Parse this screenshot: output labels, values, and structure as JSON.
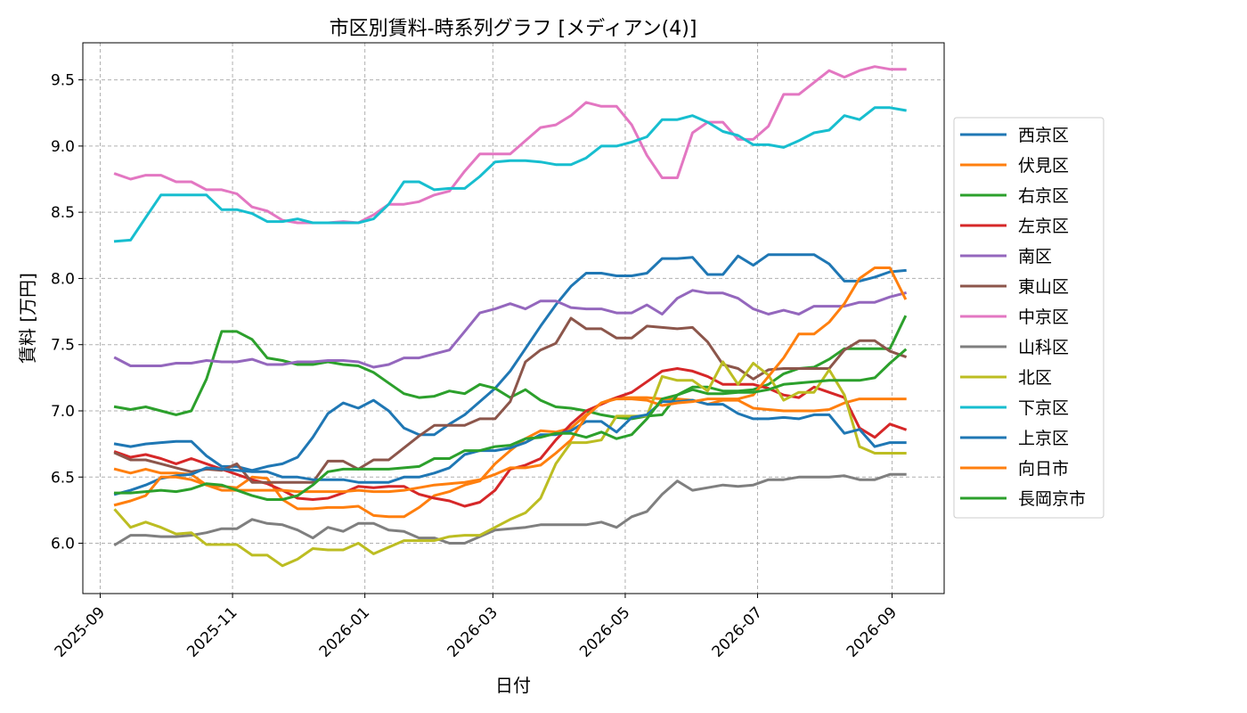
{
  "chart_data": {
    "type": "line",
    "title": "市区別賃料-時系列グラフ [メディアン(4)]",
    "xlabel": "日付",
    "ylabel": "賃料 [万円]",
    "xlim": [
      "2025-08-24",
      "2026-09-25"
    ],
    "ylim": [
      5.62,
      9.78
    ],
    "x_ticks": [
      "2025-09",
      "2025-11",
      "2026-01",
      "2026-03",
      "2026-05",
      "2026-07",
      "2026-09"
    ],
    "y_ticks": [
      "6.0",
      "6.5",
      "7.0",
      "7.5",
      "8.0",
      "8.5",
      "9.0",
      "9.5"
    ],
    "grid": true,
    "legend_position": "right",
    "x": [
      "2025-09-08",
      "2025-09-15",
      "2025-09-22",
      "2025-09-29",
      "2025-10-06",
      "2025-10-13",
      "2025-10-20",
      "2025-10-27",
      "2025-11-03",
      "2025-11-10",
      "2025-11-17",
      "2025-11-24",
      "2025-12-01",
      "2025-12-08",
      "2025-12-15",
      "2025-12-22",
      "2025-12-29",
      "2026-01-05",
      "2026-01-12",
      "2026-01-19",
      "2026-01-26",
      "2026-02-02",
      "2026-02-09",
      "2026-02-16",
      "2026-02-23",
      "2026-03-02",
      "2026-03-09",
      "2026-03-16",
      "2026-03-23",
      "2026-03-30",
      "2026-04-06",
      "2026-04-13",
      "2026-04-20",
      "2026-04-27",
      "2026-05-04",
      "2026-05-11",
      "2026-05-18",
      "2026-05-25",
      "2026-06-01",
      "2026-06-08",
      "2026-06-15",
      "2026-06-22",
      "2026-06-29",
      "2026-07-06",
      "2026-07-13",
      "2026-07-20",
      "2026-07-27",
      "2026-08-03",
      "2026-08-10",
      "2026-08-17",
      "2026-08-24",
      "2026-08-31",
      "2026-09-07"
    ],
    "series": [
      {
        "name": "西京区",
        "color": "#1f77b4",
        "values": [
          6.75,
          6.73,
          6.75,
          6.76,
          6.77,
          6.77,
          6.66,
          6.58,
          6.58,
          6.55,
          6.58,
          6.6,
          6.65,
          6.8,
          6.98,
          7.06,
          7.02,
          7.08,
          7.0,
          6.87,
          6.82,
          6.82,
          6.9,
          6.97,
          7.07,
          7.17,
          7.3,
          7.47,
          7.64,
          7.8,
          7.94,
          8.04,
          8.04,
          8.02,
          8.02,
          8.04,
          8.15,
          8.15,
          8.16,
          8.03,
          8.03,
          8.17,
          8.1,
          8.18,
          8.18,
          8.18,
          8.18,
          8.11,
          7.98,
          7.98,
          8.01,
          8.05,
          8.06
        ]
      },
      {
        "name": "伏見区",
        "color": "#ff7f0e",
        "values": [
          6.56,
          6.53,
          6.56,
          6.53,
          6.53,
          6.52,
          6.44,
          6.43,
          6.42,
          6.5,
          6.49,
          6.33,
          6.26,
          6.26,
          6.27,
          6.27,
          6.28,
          6.21,
          6.2,
          6.2,
          6.27,
          6.36,
          6.39,
          6.44,
          6.47,
          6.6,
          6.7,
          6.79,
          6.85,
          6.84,
          6.87,
          6.97,
          7.06,
          7.1,
          7.1,
          7.1,
          7.09,
          7.09,
          7.08,
          7.05,
          7.08,
          7.08,
          7.02,
          7.01,
          7.0,
          7.0,
          7.0,
          7.01,
          7.06,
          7.09,
          7.09,
          7.09,
          7.09
        ]
      },
      {
        "name": "右京区",
        "color": "#2ca02c",
        "values": [
          7.03,
          7.01,
          7.03,
          7.0,
          6.97,
          7.0,
          7.24,
          7.6,
          7.6,
          7.54,
          7.4,
          7.38,
          7.35,
          7.35,
          7.37,
          7.35,
          7.34,
          7.29,
          7.21,
          7.13,
          7.1,
          7.11,
          7.15,
          7.13,
          7.2,
          7.17,
          7.1,
          7.16,
          7.08,
          7.03,
          7.02,
          7.0,
          6.97,
          6.95,
          6.94,
          6.96,
          6.97,
          7.12,
          7.18,
          7.18,
          7.15,
          7.15,
          7.16,
          7.2,
          7.28,
          7.32,
          7.33,
          7.39,
          7.47,
          7.47,
          7.47,
          7.47,
          7.71
        ]
      },
      {
        "name": "左京区",
        "color": "#d62728",
        "values": [
          6.69,
          6.65,
          6.67,
          6.64,
          6.6,
          6.64,
          6.6,
          6.56,
          6.52,
          6.48,
          6.45,
          6.4,
          6.34,
          6.33,
          6.34,
          6.38,
          6.43,
          6.42,
          6.43,
          6.43,
          6.37,
          6.34,
          6.32,
          6.28,
          6.31,
          6.4,
          6.56,
          6.59,
          6.64,
          6.78,
          6.9,
          7.0,
          7.05,
          7.1,
          7.14,
          7.22,
          7.3,
          7.32,
          7.3,
          7.26,
          7.2,
          7.2,
          7.2,
          7.17,
          7.12,
          7.1,
          7.18,
          7.14,
          7.1,
          6.87,
          6.8,
          6.9,
          6.86
        ]
      },
      {
        "name": "南区",
        "color": "#9467bd",
        "values": [
          7.4,
          7.34,
          7.34,
          7.34,
          7.36,
          7.36,
          7.38,
          7.37,
          7.37,
          7.39,
          7.35,
          7.35,
          7.37,
          7.37,
          7.38,
          7.38,
          7.37,
          7.33,
          7.35,
          7.4,
          7.4,
          7.43,
          7.46,
          7.6,
          7.74,
          7.77,
          7.81,
          7.77,
          7.83,
          7.83,
          7.78,
          7.77,
          7.77,
          7.74,
          7.74,
          7.8,
          7.73,
          7.85,
          7.91,
          7.89,
          7.89,
          7.85,
          7.77,
          7.73,
          7.76,
          7.73,
          7.79,
          7.79,
          7.79,
          7.82,
          7.82,
          7.86,
          7.89
        ]
      },
      {
        "name": "東山区",
        "color": "#8c564b",
        "values": [
          6.68,
          6.63,
          6.63,
          6.6,
          6.57,
          6.54,
          6.56,
          6.55,
          6.6,
          6.46,
          6.46,
          6.46,
          6.46,
          6.46,
          6.62,
          6.62,
          6.56,
          6.63,
          6.63,
          6.72,
          6.81,
          6.89,
          6.89,
          6.89,
          6.94,
          6.94,
          7.07,
          7.37,
          7.46,
          7.51,
          7.7,
          7.62,
          7.62,
          7.55,
          7.55,
          7.64,
          7.63,
          7.62,
          7.63,
          7.52,
          7.35,
          7.32,
          7.24,
          7.31,
          7.32,
          7.32,
          7.32,
          7.32,
          7.46,
          7.53,
          7.53,
          7.45,
          7.41
        ]
      },
      {
        "name": "中京区",
        "color": "#e377c2",
        "values": [
          8.79,
          8.75,
          8.78,
          8.78,
          8.73,
          8.73,
          8.67,
          8.67,
          8.64,
          8.54,
          8.51,
          8.44,
          8.42,
          8.42,
          8.42,
          8.43,
          8.42,
          8.48,
          8.56,
          8.56,
          8.58,
          8.63,
          8.66,
          8.81,
          8.94,
          8.94,
          8.94,
          9.04,
          9.14,
          9.16,
          9.23,
          9.33,
          9.3,
          9.3,
          9.16,
          8.93,
          8.76,
          8.76,
          9.1,
          9.18,
          9.18,
          9.05,
          9.05,
          9.15,
          9.39,
          9.39,
          9.48,
          9.57,
          9.52,
          9.57,
          9.6,
          9.58,
          9.58
        ]
      },
      {
        "name": "山科区",
        "color": "#7f7f7f",
        "values": [
          5.99,
          6.06,
          6.06,
          6.05,
          6.05,
          6.06,
          6.08,
          6.11,
          6.11,
          6.18,
          6.15,
          6.14,
          6.1,
          6.04,
          6.12,
          6.09,
          6.15,
          6.15,
          6.1,
          6.09,
          6.04,
          6.04,
          6.0,
          6.0,
          6.05,
          6.1,
          6.11,
          6.12,
          6.14,
          6.14,
          6.14,
          6.14,
          6.16,
          6.12,
          6.2,
          6.24,
          6.37,
          6.47,
          6.4,
          6.42,
          6.44,
          6.43,
          6.44,
          6.48,
          6.48,
          6.5,
          6.5,
          6.5,
          6.51,
          6.48,
          6.48,
          6.52,
          6.52
        ]
      },
      {
        "name": "北区",
        "color": "#bcbd22",
        "values": [
          6.25,
          6.12,
          6.16,
          6.12,
          6.07,
          6.08,
          5.99,
          5.99,
          5.99,
          5.91,
          5.91,
          5.83,
          5.88,
          5.96,
          5.95,
          5.95,
          6.0,
          5.92,
          5.97,
          6.02,
          6.02,
          6.02,
          6.05,
          6.06,
          6.06,
          6.12,
          6.18,
          6.23,
          6.34,
          6.6,
          6.76,
          6.76,
          6.78,
          6.96,
          6.96,
          6.96,
          7.26,
          7.23,
          7.23,
          7.15,
          7.37,
          7.2,
          7.36,
          7.27,
          7.08,
          7.14,
          7.14,
          7.31,
          7.12,
          6.73,
          6.68,
          6.68,
          6.68
        ]
      },
      {
        "name": "下京区",
        "color": "#17becf",
        "values": [
          8.28,
          8.29,
          8.46,
          8.63,
          8.63,
          8.63,
          8.63,
          8.52,
          8.52,
          8.49,
          8.43,
          8.43,
          8.45,
          8.42,
          8.42,
          8.42,
          8.42,
          8.45,
          8.56,
          8.73,
          8.73,
          8.67,
          8.68,
          8.68,
          8.77,
          8.88,
          8.89,
          8.89,
          8.88,
          8.86,
          8.86,
          8.91,
          9.0,
          9.0,
          9.03,
          9.07,
          9.2,
          9.2,
          9.23,
          9.18,
          9.11,
          9.08,
          9.01,
          9.01,
          8.99,
          9.04,
          9.1,
          9.12,
          9.23,
          9.2,
          9.29,
          9.29,
          9.27
        ]
      },
      {
        "name": "上京区",
        "color": "#1f77b4",
        "values": [
          6.37,
          6.4,
          6.44,
          6.49,
          6.51,
          6.52,
          6.57,
          6.56,
          6.55,
          6.54,
          6.54,
          6.5,
          6.5,
          6.48,
          6.48,
          6.48,
          6.46,
          6.46,
          6.46,
          6.5,
          6.5,
          6.53,
          6.57,
          6.67,
          6.7,
          6.7,
          6.72,
          6.76,
          6.82,
          6.82,
          6.85,
          6.92,
          6.92,
          6.84,
          6.95,
          6.97,
          7.07,
          7.07,
          7.08,
          7.05,
          7.05,
          6.98,
          6.94,
          6.94,
          6.95,
          6.94,
          6.97,
          6.97,
          6.83,
          6.86,
          6.73,
          6.76,
          6.76
        ]
      },
      {
        "name": "向日市",
        "color": "#ff7f0e",
        "values": [
          6.29,
          6.32,
          6.36,
          6.5,
          6.5,
          6.48,
          6.44,
          6.4,
          6.4,
          6.4,
          6.4,
          6.4,
          6.39,
          6.39,
          6.39,
          6.39,
          6.4,
          6.39,
          6.39,
          6.4,
          6.42,
          6.44,
          6.45,
          6.46,
          6.48,
          6.52,
          6.57,
          6.57,
          6.59,
          6.68,
          6.78,
          6.96,
          7.06,
          7.09,
          7.09,
          7.08,
          7.04,
          7.06,
          7.07,
          7.09,
          7.09,
          7.09,
          7.12,
          7.26,
          7.4,
          7.58,
          7.58,
          7.67,
          7.81,
          8.0,
          8.08,
          8.08,
          7.85
        ]
      },
      {
        "name": "長岡京市",
        "color": "#2ca02c",
        "values": [
          6.38,
          6.38,
          6.39,
          6.4,
          6.39,
          6.41,
          6.45,
          6.44,
          6.4,
          6.36,
          6.33,
          6.33,
          6.36,
          6.44,
          6.54,
          6.56,
          6.56,
          6.56,
          6.56,
          6.57,
          6.58,
          6.64,
          6.64,
          6.7,
          6.7,
          6.73,
          6.74,
          6.79,
          6.8,
          6.83,
          6.83,
          6.8,
          6.84,
          6.79,
          6.82,
          6.94,
          7.09,
          7.12,
          7.16,
          7.13,
          7.13,
          7.14,
          7.14,
          7.16,
          7.2,
          7.21,
          7.22,
          7.23,
          7.23,
          7.23,
          7.25,
          7.36,
          7.46
        ]
      }
    ]
  }
}
